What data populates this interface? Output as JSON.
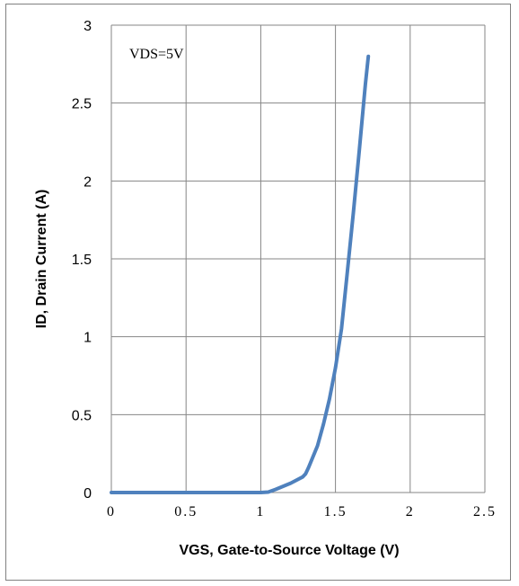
{
  "chart_data": {
    "type": "line",
    "title": "",
    "xlabel": "VGS, Gate-to-Source Voltage (V)",
    "ylabel": "ID, Drain Current (A)",
    "xlim": [
      0,
      2.5
    ],
    "ylim": [
      0,
      3
    ],
    "x_ticks": [
      0,
      0.5,
      1,
      1.5,
      2,
      2.5
    ],
    "x_tick_labels": [
      "0",
      "0.5",
      "1",
      "1.5",
      "2",
      "2.5"
    ],
    "y_ticks": [
      0,
      0.5,
      1,
      1.5,
      2,
      2.5,
      3
    ],
    "y_tick_labels": [
      "0",
      "0.5",
      "1",
      "1.5",
      "2",
      "2.5",
      "3"
    ],
    "grid": true,
    "legend": "none",
    "annotation": "VDS=5V",
    "line_color": "#4f81bd",
    "grid_color": "#868686",
    "series": [
      {
        "x": [
          0,
          0.5,
          1.0,
          1.05,
          1.1,
          1.2,
          1.28,
          1.3,
          1.32,
          1.35,
          1.38,
          1.42,
          1.46,
          1.5,
          1.54,
          1.58,
          1.62,
          1.66,
          1.7,
          1.72
        ],
        "y": [
          0,
          0,
          0,
          0.003,
          0.02,
          0.06,
          0.1,
          0.12,
          0.16,
          0.23,
          0.3,
          0.44,
          0.6,
          0.8,
          1.05,
          1.42,
          1.8,
          2.2,
          2.62,
          2.8
        ]
      }
    ]
  }
}
